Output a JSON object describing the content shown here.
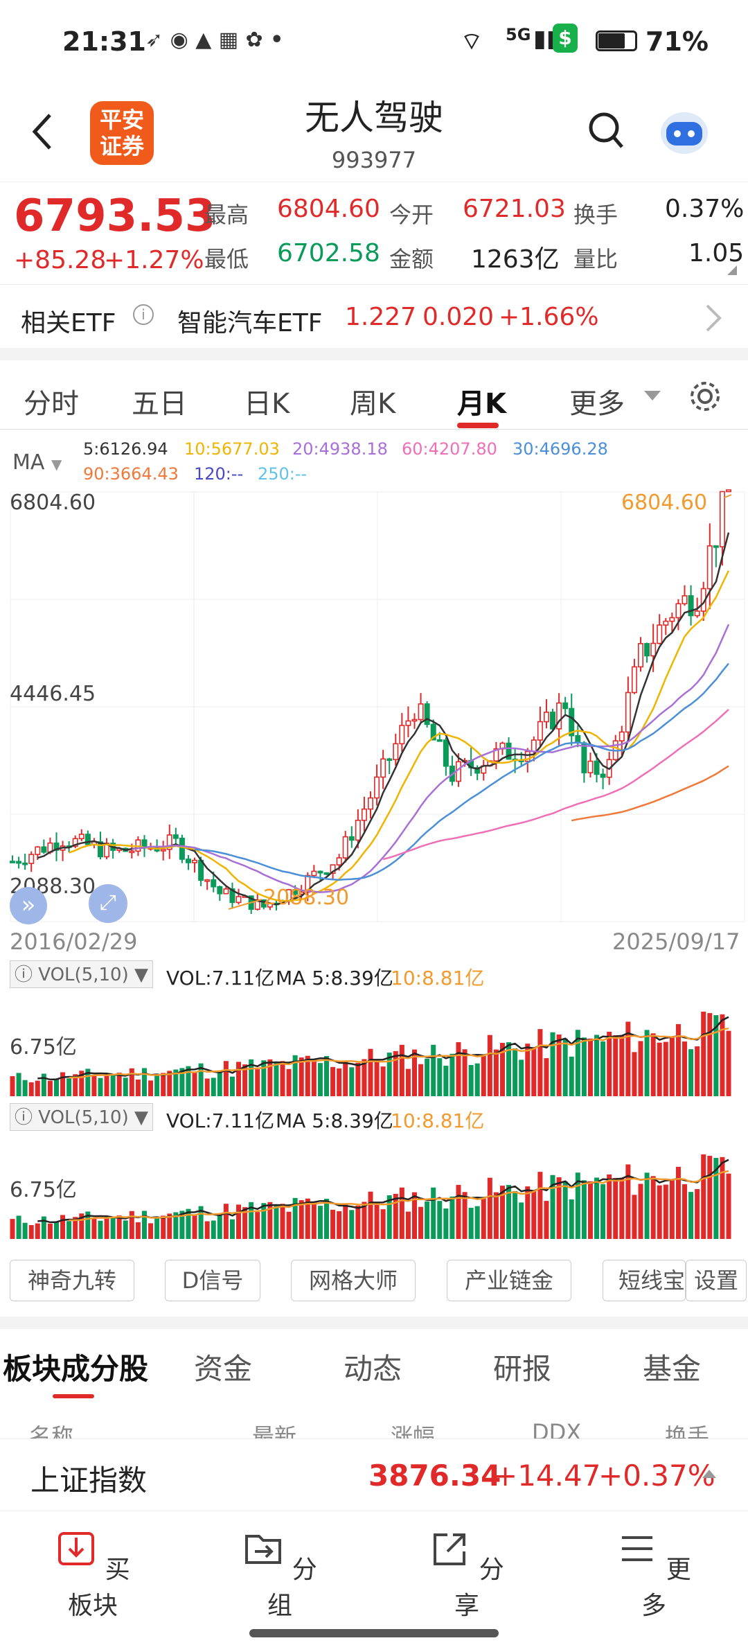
{
  "status": {
    "time": "21:31",
    "battery": "71%",
    "network": "5G"
  },
  "header": {
    "title": "无人驾驶",
    "code": "993977",
    "logo_line1": "平安",
    "logo_line2": "证券"
  },
  "quote": {
    "price": "6793.53",
    "change": "+85.28",
    "change_pct": "+1.27%",
    "high_label": "最高",
    "high": "6804.60",
    "low_label": "最低",
    "low": "6702.58",
    "open_label": "今开",
    "open": "6721.03",
    "amount_label": "金额",
    "amount": "1263亿",
    "turnover_label": "换手",
    "turnover": "0.37%",
    "ratio_label": "量比",
    "ratio": "1.05"
  },
  "etf": {
    "label": "相关ETF",
    "name": "智能汽车ETF",
    "price": "1.227",
    "change": "0.020",
    "pct": "+1.66%"
  },
  "tabs": [
    "分时",
    "五日",
    "日K",
    "周K",
    "月K",
    "更多"
  ],
  "active_tab": 4,
  "ma": {
    "label": "MA",
    "ma5": "5:6126.94",
    "ma10": "10:5677.03",
    "ma20": "20:4938.18",
    "ma60": "60:4207.80",
    "ma30": "30:4696.28",
    "ma90": "90:3664.43",
    "ma120": "120:--",
    "ma250": "250:--"
  },
  "chart": {
    "y_high": "6804.60",
    "y_mid": "4446.45",
    "y_low": "2088.30",
    "high_mark": "6804.60",
    "low_mark": "2088.30",
    "date_start": "2016/02/29",
    "date_end": "2025/09/17"
  },
  "vol": {
    "box": "VOL(5,10)",
    "vol": "VOL:7.11亿",
    "ma5": "MA 5:8.39亿",
    "ma10": "10:8.81亿",
    "axis": "6.75亿"
  },
  "tools": [
    "神奇九转",
    "D信号",
    "网格大师",
    "产业链金",
    "短线宝",
    "设置"
  ],
  "content_tabs": [
    "板块成分股",
    "资金",
    "动态",
    "研报",
    "基金"
  ],
  "columns": [
    "名称",
    "最新",
    "涨幅",
    "DDX",
    "换手"
  ],
  "index": {
    "name": "上证指数",
    "price": "3876.34",
    "change": "+14.47",
    "pct": "+0.37%"
  },
  "footer": [
    "买板块",
    "分组",
    "分享",
    "更多"
  ]
}
